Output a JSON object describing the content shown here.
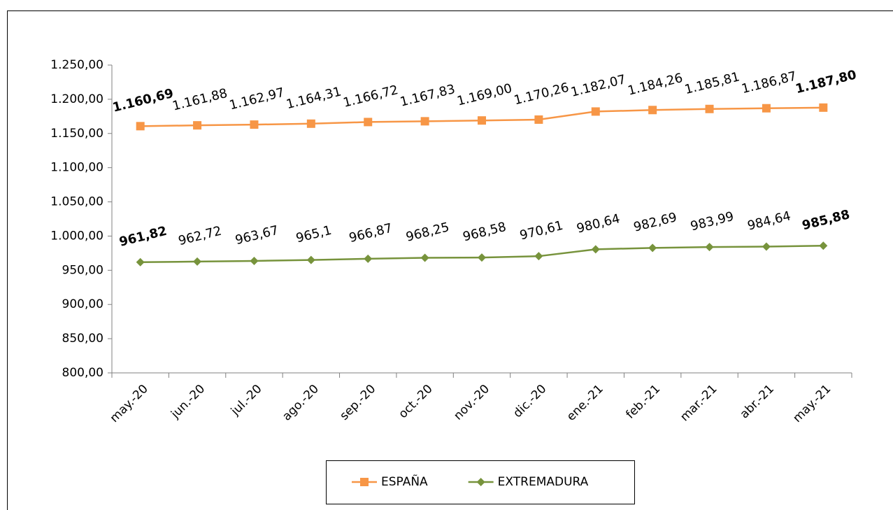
{
  "chart_data": {
    "type": "line",
    "categories": [
      "may.-20",
      "jun.-20",
      "jul.-20",
      "ago.-20",
      "sep.-20",
      "oct.-20",
      "nov.-20",
      "dic.-20",
      "ene.-21",
      "feb.-21",
      "mar.-21",
      "abr.-21",
      "may.-21"
    ],
    "series": [
      {
        "name": "ESPAÑA",
        "color": "#f79646",
        "marker": "square",
        "values": [
          1160.69,
          1161.88,
          1162.97,
          1164.31,
          1166.72,
          1167.83,
          1169.0,
          1170.26,
          1182.07,
          1184.26,
          1185.81,
          1186.87,
          1187.8
        ],
        "value_labels": [
          "1.160,69",
          "1.161,88",
          "1.162,97",
          "1.164,31",
          "1.166,72",
          "1.167,83",
          "1.169,00",
          "1.170,26",
          "1.182,07",
          "1.184,26",
          "1.185,81",
          "1.186,87",
          "1.187,80"
        ]
      },
      {
        "name": "EXTREMADURA",
        "color": "#77933c",
        "marker": "diamond",
        "values": [
          961.82,
          962.72,
          963.67,
          965.1,
          966.87,
          968.25,
          968.58,
          970.61,
          980.64,
          982.69,
          983.99,
          984.64,
          985.88
        ],
        "value_labels": [
          "961,82",
          "962,72",
          "963,67",
          "965,1",
          "966,87",
          "968,25",
          "968,58",
          "970,61",
          "980,64",
          "982,69",
          "983,99",
          "984,64",
          "985,88"
        ]
      }
    ],
    "ylim": [
      800,
      1250
    ],
    "yticks": [
      {
        "value": 800,
        "label": "800,00"
      },
      {
        "value": 850,
        "label": "850,00"
      },
      {
        "value": 900,
        "label": "900,00"
      },
      {
        "value": 950,
        "label": "950,00"
      },
      {
        "value": 1000,
        "label": "1.000,00"
      },
      {
        "value": 1050,
        "label": "1.050,00"
      },
      {
        "value": 1100,
        "label": "1.100,00"
      },
      {
        "value": 1150,
        "label": "1.150,00"
      },
      {
        "value": 1200,
        "label": "1.200,00"
      },
      {
        "value": 1250,
        "label": "1.250,00"
      }
    ],
    "grid": false,
    "legend": "bottom"
  }
}
